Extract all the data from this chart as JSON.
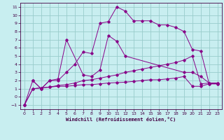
{
  "xlabel": "Windchill (Refroidissement éolien,°C)",
  "bg_color": "#c8eef0",
  "line_color": "#880088",
  "grid_color": "#99cccc",
  "xlim": [
    -0.5,
    23.5
  ],
  "ylim": [
    -1.5,
    11.5
  ],
  "xticks": [
    0,
    1,
    2,
    3,
    4,
    5,
    6,
    7,
    8,
    9,
    10,
    11,
    12,
    13,
    14,
    15,
    16,
    17,
    18,
    19,
    20,
    21,
    22,
    23
  ],
  "yticks": [
    -1,
    0,
    1,
    2,
    3,
    4,
    5,
    6,
    7,
    8,
    9,
    10,
    11
  ],
  "lines": [
    {
      "x": [
        0,
        1,
        2,
        3,
        4,
        5,
        6,
        7,
        8,
        9,
        10,
        11,
        12,
        13,
        14,
        15,
        16,
        17,
        18,
        19,
        20,
        21,
        22,
        23
      ],
      "y": [
        -1,
        2,
        1,
        2,
        2,
        3,
        4,
        5.5,
        5.3,
        9,
        9.2,
        11,
        10.5,
        9.3,
        9.3,
        9.3,
        8.8,
        8.8,
        8.5,
        8,
        5.8,
        5.6,
        1.6,
        1.6
      ]
    },
    {
      "x": [
        1,
        2,
        3,
        4,
        5,
        7,
        8,
        9,
        10,
        11,
        12,
        19,
        20,
        21,
        22,
        23
      ],
      "y": [
        2,
        1,
        2,
        2.2,
        7,
        2.7,
        2.5,
        3.3,
        7.5,
        6.8,
        5,
        3,
        3,
        2.5,
        1.7,
        1.7
      ]
    },
    {
      "x": [
        0,
        1,
        2,
        3,
        4,
        5,
        6,
        7,
        8,
        9,
        10,
        11,
        12,
        13,
        14,
        15,
        16,
        17,
        18,
        19,
        20,
        21,
        22,
        23
      ],
      "y": [
        -1,
        1,
        1.1,
        1.2,
        1.4,
        1.5,
        1.7,
        2,
        2.1,
        2.3,
        2.5,
        2.7,
        3,
        3.2,
        3.4,
        3.6,
        3.8,
        4,
        4.2,
        4.5,
        5,
        1.6,
        1.7,
        1.7
      ]
    },
    {
      "x": [
        0,
        1,
        2,
        3,
        4,
        5,
        6,
        7,
        8,
        9,
        10,
        11,
        12,
        13,
        14,
        15,
        16,
        17,
        18,
        19,
        20,
        21,
        22,
        23
      ],
      "y": [
        -1,
        1,
        1.1,
        1.2,
        1.3,
        1.3,
        1.4,
        1.5,
        1.5,
        1.6,
        1.7,
        1.75,
        1.8,
        1.9,
        2,
        2.1,
        2.1,
        2.2,
        2.3,
        2.5,
        1.3,
        1.3,
        1.6,
        1.6
      ]
    }
  ]
}
